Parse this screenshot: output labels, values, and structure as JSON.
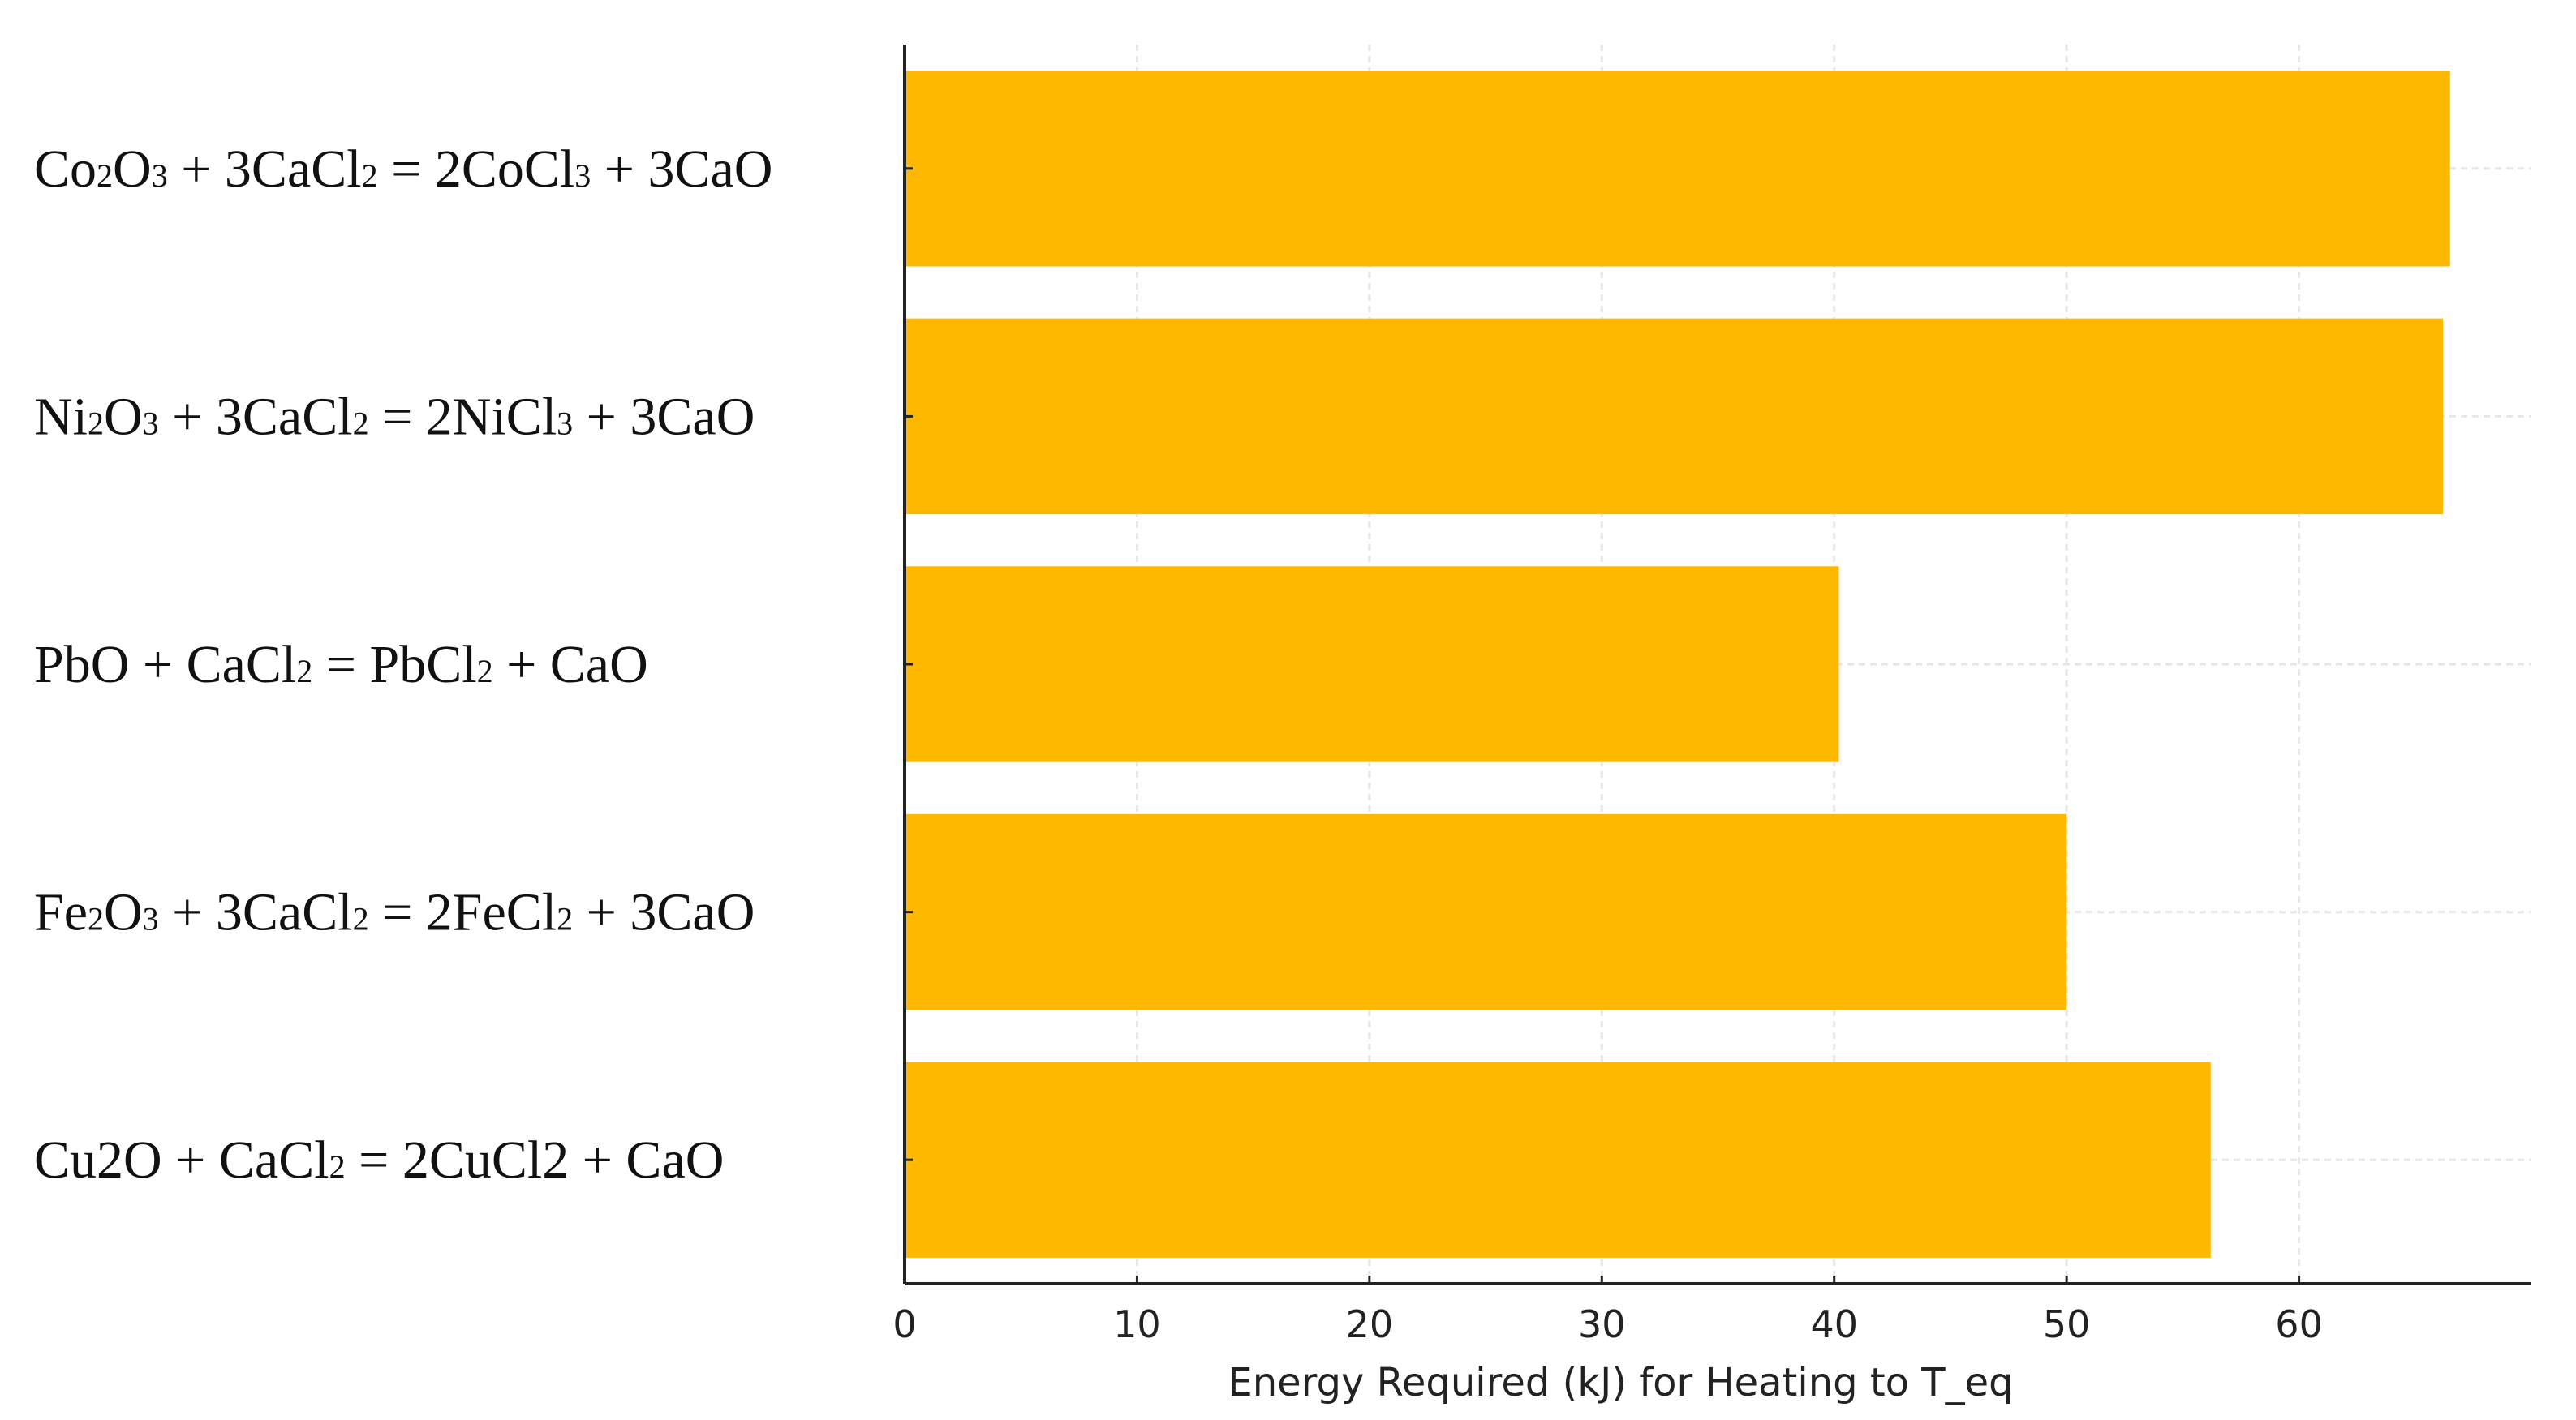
{
  "chart_data": {
    "type": "bar",
    "orientation": "horizontal",
    "categories": [
      "Co2O3 + 3CaCl2 = 2CoCl3 + 3CaO",
      "Ni2O3 + 3CaCl2 = 2NiCl3 + 3CaO",
      "PbO + CaCl2 = PbCl2 + CaO",
      "Fe2O3 + 3CaCl2 = 2FeCl2 + 3CaO",
      "Cu2O + CaCl2 = 2CuCl2 + CaO"
    ],
    "category_labels": [
      [
        {
          "t": "Co"
        },
        {
          "t": "2",
          "sub": true
        },
        {
          "t": "O"
        },
        {
          "t": "3",
          "sub": true
        },
        {
          "t": " + 3CaCl"
        },
        {
          "t": "2",
          "sub": true
        },
        {
          "t": " = 2CoCl"
        },
        {
          "t": "3",
          "sub": true
        },
        {
          "t": " + 3CaO"
        }
      ],
      [
        {
          "t": "Ni"
        },
        {
          "t": "2",
          "sub": true
        },
        {
          "t": "O"
        },
        {
          "t": "3",
          "sub": true
        },
        {
          "t": " + 3CaCl"
        },
        {
          "t": "2",
          "sub": true
        },
        {
          "t": " = 2NiCl"
        },
        {
          "t": "3",
          "sub": true
        },
        {
          "t": " + 3CaO"
        }
      ],
      [
        {
          "t": "PbO + CaCl"
        },
        {
          "t": "2",
          "sub": true
        },
        {
          "t": " = PbCl"
        },
        {
          "t": "2",
          "sub": true
        },
        {
          "t": " + CaO"
        }
      ],
      [
        {
          "t": "Fe"
        },
        {
          "t": "2",
          "sub": true
        },
        {
          "t": "O"
        },
        {
          "t": "3",
          "sub": true
        },
        {
          "t": " + 3CaCl"
        },
        {
          "t": "2",
          "sub": true
        },
        {
          "t": " = 2FeCl"
        },
        {
          "t": "2",
          "sub": true
        },
        {
          "t": " + 3CaO"
        }
      ],
      [
        {
          "t": "Cu2O + CaCl"
        },
        {
          "t": "2",
          "sub": true
        },
        {
          "t": " = 2CuCl2 + CaO"
        }
      ]
    ],
    "values": [
      66.5,
      66.2,
      40.2,
      50.0,
      56.2
    ],
    "xlabel": "Energy Required (kJ) for Heating to T_eq",
    "ylabel": "",
    "xlim": [
      0,
      70
    ],
    "xticks": [
      0,
      10,
      20,
      30,
      40,
      50,
      60
    ],
    "grid": true,
    "bar_color": "#FFB800",
    "grid_color": "#e6e6e6",
    "axis_color": "#222222"
  }
}
